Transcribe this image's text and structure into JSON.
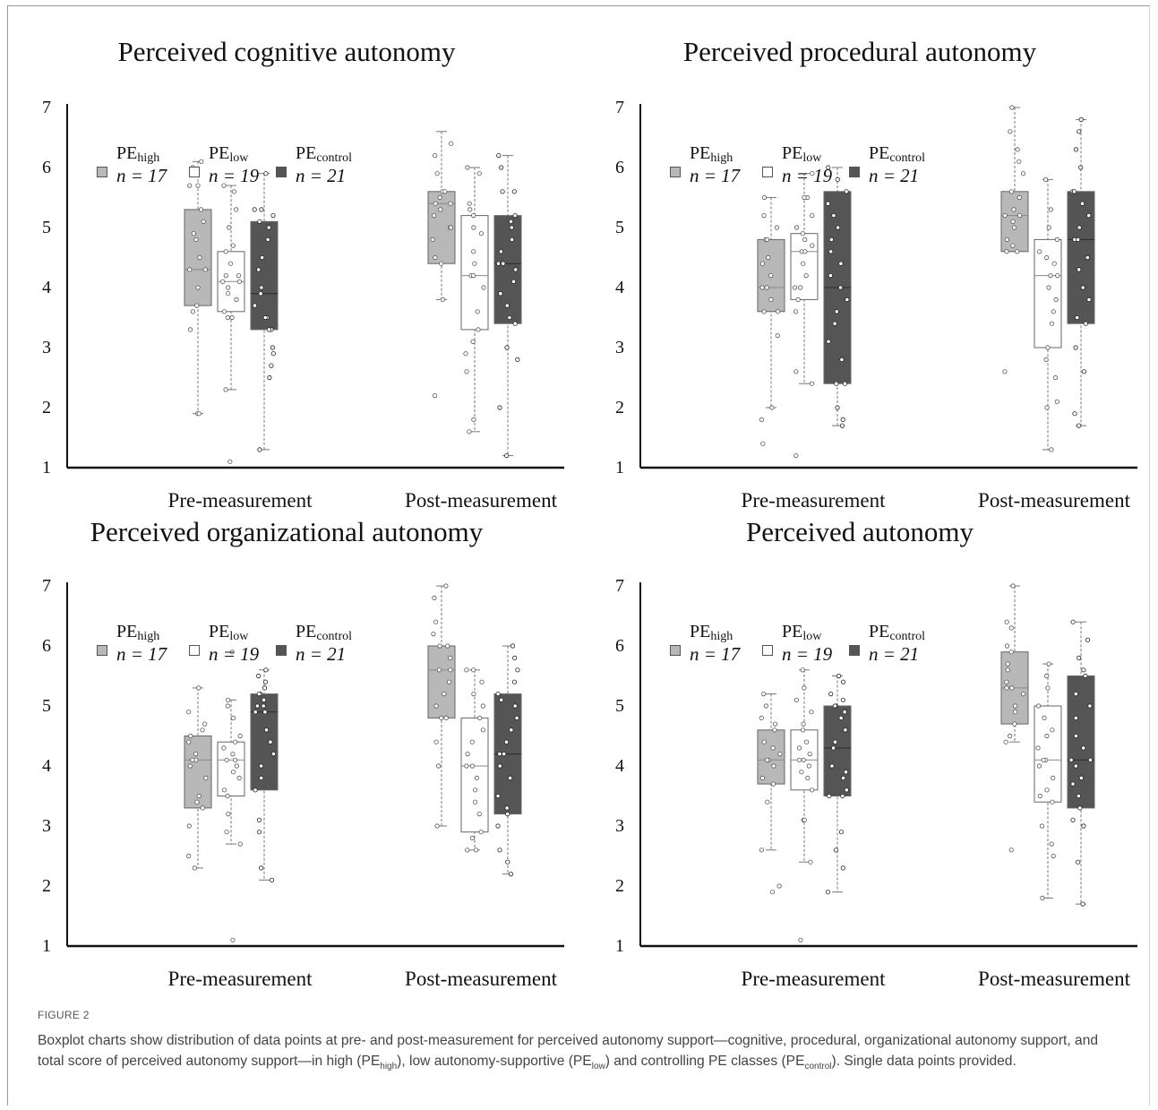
{
  "legend": [
    {
      "base": "PE",
      "sub": "high",
      "n_label": "n = 17",
      "color": "#b8b8b8"
    },
    {
      "base": "PE",
      "sub": "low",
      "n_label": "n = 19",
      "color": "#ffffff"
    },
    {
      "base": "PE",
      "sub": "control",
      "n_label": "n = 21",
      "color": "#555555"
    }
  ],
  "caption": {
    "label": "FIGURE 2",
    "parts": [
      {
        "t": "Boxplot charts show distribution of data points at pre- and post-measurement for perceived autonomy support—cognitive, procedural, organizational autonomy support, and total score of perceived autonomy support—in high (PE"
      },
      {
        "sub": "high"
      },
      {
        "t": "), low autonomy-supportive (PE"
      },
      {
        "sub": "low"
      },
      {
        "t": ") and controlling PE classes (PE"
      },
      {
        "sub": "control"
      },
      {
        "t": "). Single data points provided."
      }
    ]
  },
  "chart_data": [
    {
      "type": "boxplot",
      "title": "Perceived cognitive autonomy",
      "categories": [
        "Pre-measurement",
        "Post-measurement"
      ],
      "yticks": [
        1,
        2,
        3,
        4,
        5,
        6,
        7
      ],
      "ylim": [
        1,
        7
      ],
      "series": [
        {
          "group": "PE_high",
          "boxes": [
            {
              "min": 1.9,
              "q1": 3.7,
              "median": 4.3,
              "q3": 5.3,
              "max": 6.1,
              "points": [
                1.9,
                1.9,
                3.3,
                3.6,
                3.7,
                4.0,
                4.3,
                4.3,
                4.5,
                4.8,
                4.9,
                5.1,
                5.3,
                5.7,
                5.7,
                6.0,
                6.1
              ]
            },
            {
              "min": 3.8,
              "q1": 4.4,
              "median": 5.4,
              "q3": 5.6,
              "max": 6.6,
              "points": [
                2.2,
                3.8,
                4.4,
                4.5,
                4.8,
                5.0,
                5.0,
                5.2,
                5.3,
                5.4,
                5.4,
                5.5,
                5.6,
                5.6,
                5.9,
                6.2,
                6.4
              ]
            }
          ]
        },
        {
          "group": "PE_low",
          "boxes": [
            {
              "min": 2.3,
              "q1": 3.6,
              "median": 4.1,
              "q3": 4.6,
              "max": 5.7,
              "points": [
                1.1,
                2.3,
                3.5,
                3.5,
                3.6,
                3.8,
                3.9,
                4.0,
                4.1,
                4.1,
                4.2,
                4.2,
                4.4,
                4.6,
                4.7,
                5.0,
                5.3,
                5.6,
                5.7
              ]
            },
            {
              "min": 1.6,
              "q1": 3.3,
              "median": 4.2,
              "q3": 5.2,
              "max": 6.0,
              "points": [
                1.6,
                1.8,
                2.6,
                2.9,
                3.1,
                3.3,
                3.6,
                4.0,
                4.2,
                4.2,
                4.4,
                4.6,
                4.9,
                5.0,
                5.2,
                5.3,
                5.4,
                5.9,
                6.0
              ]
            }
          ]
        },
        {
          "group": "PE_control",
          "boxes": [
            {
              "min": 1.3,
              "q1": 3.3,
              "median": 3.9,
              "q3": 5.1,
              "max": 5.9,
              "points": [
                1.3,
                2.5,
                2.7,
                2.9,
                3.0,
                3.3,
                3.3,
                3.5,
                3.5,
                3.7,
                3.9,
                4.0,
                4.3,
                4.5,
                4.8,
                5.0,
                5.1,
                5.2,
                5.3,
                5.3,
                5.9
              ]
            },
            {
              "min": 1.2,
              "q1": 3.4,
              "median": 4.4,
              "q3": 5.2,
              "max": 6.2,
              "points": [
                1.2,
                2.0,
                2.8,
                3.0,
                3.4,
                3.5,
                3.7,
                3.9,
                4.1,
                4.3,
                4.4,
                4.4,
                4.6,
                4.8,
                5.0,
                5.1,
                5.2,
                5.6,
                5.6,
                6.0,
                6.2
              ]
            }
          ]
        }
      ]
    },
    {
      "type": "boxplot",
      "title": "Perceived procedural autonomy",
      "categories": [
        "Pre-measurement",
        "Post-measurement"
      ],
      "yticks": [
        1,
        2,
        3,
        4,
        5,
        6,
        7
      ],
      "ylim": [
        1,
        7
      ],
      "series": [
        {
          "group": "PE_high",
          "boxes": [
            {
              "min": 2.0,
              "q1": 3.6,
              "median": 4.0,
              "q3": 4.8,
              "max": 5.5,
              "points": [
                1.4,
                1.8,
                2.0,
                3.2,
                3.6,
                3.6,
                3.8,
                4.0,
                4.0,
                4.2,
                4.4,
                4.5,
                4.8,
                4.8,
                5.0,
                5.2,
                5.5
              ]
            },
            {
              "min": 4.6,
              "q1": 4.6,
              "median": 5.2,
              "q3": 5.6,
              "max": 7.0,
              "points": [
                2.6,
                4.6,
                4.6,
                4.7,
                4.8,
                5.0,
                5.1,
                5.2,
                5.2,
                5.3,
                5.5,
                5.6,
                5.9,
                6.1,
                6.3,
                6.6,
                7.0
              ]
            }
          ]
        },
        {
          "group": "PE_low",
          "boxes": [
            {
              "min": 2.4,
              "q1": 3.8,
              "median": 4.6,
              "q3": 4.9,
              "max": 5.9,
              "points": [
                1.2,
                2.4,
                2.6,
                3.6,
                3.8,
                4.0,
                4.0,
                4.2,
                4.4,
                4.6,
                4.6,
                4.7,
                4.8,
                4.9,
                5.0,
                5.2,
                5.5,
                5.5,
                5.9
              ]
            },
            {
              "min": 1.3,
              "q1": 3.0,
              "median": 4.2,
              "q3": 4.8,
              "max": 5.8,
              "points": [
                1.3,
                2.0,
                2.1,
                2.5,
                2.8,
                3.0,
                3.4,
                3.6,
                3.8,
                4.0,
                4.2,
                4.2,
                4.4,
                4.5,
                4.6,
                4.8,
                5.0,
                5.3,
                5.8
              ]
            }
          ]
        },
        {
          "group": "PE_control",
          "boxes": [
            {
              "min": 1.7,
              "q1": 2.4,
              "median": 4.0,
              "q3": 5.6,
              "max": 6.0,
              "points": [
                1.7,
                1.8,
                2.0,
                2.4,
                2.4,
                2.8,
                3.1,
                3.4,
                3.6,
                3.8,
                4.0,
                4.2,
                4.4,
                4.6,
                4.8,
                5.0,
                5.2,
                5.4,
                5.6,
                5.8,
                6.0
              ]
            },
            {
              "min": 1.7,
              "q1": 3.4,
              "median": 4.8,
              "q3": 5.6,
              "max": 6.8,
              "points": [
                1.7,
                1.9,
                2.6,
                3.0,
                3.4,
                3.5,
                3.8,
                4.0,
                4.3,
                4.5,
                4.8,
                4.8,
                5.0,
                5.2,
                5.4,
                5.6,
                5.6,
                6.0,
                6.3,
                6.6,
                6.8
              ]
            }
          ]
        }
      ]
    },
    {
      "type": "boxplot",
      "title": "Perceived organizational autonomy",
      "categories": [
        "Pre-measurement",
        "Post-measurement"
      ],
      "yticks": [
        1,
        2,
        3,
        4,
        5,
        6,
        7
      ],
      "ylim": [
        1,
        7
      ],
      "series": [
        {
          "group": "PE_high",
          "boxes": [
            {
              "min": 2.3,
              "q1": 3.3,
              "median": 4.1,
              "q3": 4.5,
              "max": 5.3,
              "points": [
                2.3,
                2.5,
                3.0,
                3.3,
                3.4,
                3.5,
                3.8,
                4.0,
                4.1,
                4.1,
                4.2,
                4.4,
                4.5,
                4.6,
                4.7,
                4.9,
                5.3
              ]
            },
            {
              "min": 3.0,
              "q1": 4.8,
              "median": 5.6,
              "q3": 6.0,
              "max": 7.0,
              "points": [
                3.0,
                4.0,
                4.4,
                4.8,
                4.8,
                5.0,
                5.2,
                5.4,
                5.6,
                5.6,
                5.8,
                6.0,
                6.0,
                6.2,
                6.4,
                6.8,
                7.0
              ]
            }
          ]
        },
        {
          "group": "PE_low",
          "boxes": [
            {
              "min": 2.7,
              "q1": 3.5,
              "median": 4.1,
              "q3": 4.4,
              "max": 5.1,
              "points": [
                1.1,
                2.7,
                2.9,
                3.2,
                3.5,
                3.6,
                3.8,
                3.9,
                4.0,
                4.1,
                4.1,
                4.2,
                4.3,
                4.4,
                4.5,
                4.8,
                5.0,
                5.1,
                5.9
              ]
            },
            {
              "min": 2.6,
              "q1": 2.9,
              "median": 4.0,
              "q3": 4.8,
              "max": 5.6,
              "points": [
                2.6,
                2.6,
                2.8,
                2.9,
                3.2,
                3.4,
                3.6,
                3.8,
                4.0,
                4.0,
                4.2,
                4.4,
                4.6,
                4.8,
                5.0,
                5.2,
                5.4,
                5.6,
                5.6
              ]
            }
          ]
        },
        {
          "group": "PE_control",
          "boxes": [
            {
              "min": 2.1,
              "q1": 3.6,
              "median": 4.9,
              "q3": 5.2,
              "max": 5.6,
              "points": [
                2.1,
                2.3,
                2.9,
                3.1,
                3.6,
                3.8,
                4.0,
                4.2,
                4.4,
                4.6,
                4.9,
                4.9,
                5.0,
                5.0,
                5.1,
                5.2,
                5.2,
                5.3,
                5.4,
                5.5,
                5.6
              ]
            },
            {
              "min": 2.2,
              "q1": 3.2,
              "median": 4.2,
              "q3": 5.2,
              "max": 6.0,
              "points": [
                2.2,
                2.4,
                2.6,
                3.0,
                3.2,
                3.3,
                3.5,
                3.8,
                4.0,
                4.2,
                4.2,
                4.4,
                4.6,
                4.8,
                5.0,
                5.1,
                5.2,
                5.4,
                5.6,
                5.8,
                6.0
              ]
            }
          ]
        }
      ]
    },
    {
      "type": "boxplot",
      "title": "Perceived autonomy",
      "categories": [
        "Pre-measurement",
        "Post-measurement"
      ],
      "yticks": [
        1,
        2,
        3,
        4,
        5,
        6,
        7
      ],
      "ylim": [
        1,
        7
      ],
      "series": [
        {
          "group": "PE_high",
          "boxes": [
            {
              "min": 2.6,
              "q1": 3.7,
              "median": 4.1,
              "q3": 4.6,
              "max": 5.2,
              "points": [
                1.9,
                2.0,
                2.6,
                3.4,
                3.7,
                3.8,
                4.0,
                4.1,
                4.1,
                4.2,
                4.3,
                4.4,
                4.6,
                4.7,
                4.8,
                5.0,
                5.2
              ]
            },
            {
              "min": 4.4,
              "q1": 4.7,
              "median": 5.3,
              "q3": 5.9,
              "max": 7.0,
              "points": [
                2.6,
                4.4,
                4.5,
                4.7,
                4.9,
                5.0,
                5.2,
                5.3,
                5.3,
                5.4,
                5.6,
                5.7,
                5.9,
                6.0,
                6.3,
                6.4,
                7.0
              ]
            }
          ]
        },
        {
          "group": "PE_low",
          "boxes": [
            {
              "min": 2.4,
              "q1": 3.6,
              "median": 4.1,
              "q3": 4.6,
              "max": 5.6,
              "points": [
                1.1,
                2.4,
                3.1,
                3.1,
                3.6,
                3.8,
                3.9,
                4.0,
                4.1,
                4.1,
                4.2,
                4.3,
                4.4,
                4.6,
                4.7,
                4.9,
                5.1,
                5.3,
                5.6
              ]
            },
            {
              "min": 1.8,
              "q1": 3.4,
              "median": 4.1,
              "q3": 5.0,
              "max": 5.7,
              "points": [
                1.8,
                2.5,
                2.7,
                3.0,
                3.4,
                3.5,
                3.6,
                3.8,
                4.0,
                4.1,
                4.1,
                4.3,
                4.5,
                4.6,
                4.8,
                5.0,
                5.3,
                5.5,
                5.7
              ]
            }
          ]
        },
        {
          "group": "PE_control",
          "boxes": [
            {
              "min": 1.9,
              "q1": 3.5,
              "median": 4.3,
              "q3": 5.0,
              "max": 5.5,
              "points": [
                1.9,
                2.3,
                2.6,
                2.9,
                3.5,
                3.5,
                3.6,
                3.8,
                3.9,
                4.0,
                4.3,
                4.4,
                4.6,
                4.8,
                4.9,
                5.0,
                5.0,
                5.1,
                5.2,
                5.4,
                5.5
              ]
            },
            {
              "min": 1.7,
              "q1": 3.3,
              "median": 4.1,
              "q3": 5.5,
              "max": 6.4,
              "points": [
                1.7,
                2.4,
                3.0,
                3.1,
                3.3,
                3.5,
                3.7,
                3.8,
                4.0,
                4.1,
                4.1,
                4.3,
                4.5,
                4.8,
                5.0,
                5.2,
                5.5,
                5.6,
                5.8,
                6.1,
                6.4
              ]
            }
          ]
        }
      ]
    }
  ]
}
